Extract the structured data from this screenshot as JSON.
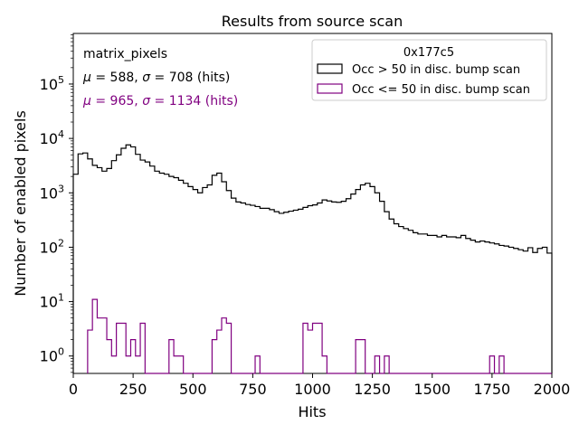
{
  "chart_data": {
    "type": "histogram-step",
    "title": "Results from source scan",
    "xlabel": "Hits",
    "ylabel": "Number of enabled pixels",
    "xlim": [
      0,
      2000
    ],
    "ylim_log10": [
      -0.32,
      5.93
    ],
    "yscale": "log",
    "x_ticks": [
      0,
      250,
      500,
      750,
      1000,
      1250,
      1500,
      1750,
      2000
    ],
    "y_ticks": [
      {
        "exp": 0,
        "label_base": "10",
        "label_exp": "0"
      },
      {
        "exp": 1,
        "label_base": "10",
        "label_exp": "1"
      },
      {
        "exp": 2,
        "label_base": "10",
        "label_exp": "2"
      },
      {
        "exp": 3,
        "label_base": "10",
        "label_exp": "3"
      },
      {
        "exp": 4,
        "label_base": "10",
        "label_exp": "4"
      },
      {
        "exp": 5,
        "label_base": "10",
        "label_exp": "5"
      }
    ],
    "bin_width": 20,
    "annotations": {
      "name": "matrix_pixels",
      "stats_all": {
        "mu_sym": "μ",
        "mu_val": " = 588, ",
        "sigma_sym": "σ",
        "sigma_val": " = 708 (hits)",
        "color": "#000000"
      },
      "stats_low": {
        "mu_sym": "μ",
        "mu_val": " = 965, ",
        "sigma_sym": "σ",
        "sigma_val": " = 1134 (hits)",
        "color": "#800080"
      }
    },
    "legend": {
      "title": "0x177c5",
      "placement": "top-right",
      "entries": [
        {
          "label": "Occ > 50 in disc. bump scan",
          "color": "#000000"
        },
        {
          "label": "Occ <= 50 in disc. bump scan",
          "color": "#800080"
        }
      ]
    },
    "series": [
      {
        "name": "Occ > 50 in disc. bump scan",
        "color": "#000000",
        "x_start": 0,
        "values": [
          2200,
          5200,
          5400,
          4200,
          3200,
          2900,
          2500,
          2800,
          3900,
          5000,
          6600,
          7600,
          7000,
          5100,
          4000,
          3700,
          3100,
          2500,
          2300,
          2200,
          2000,
          1900,
          1700,
          1500,
          1300,
          1150,
          1000,
          1250,
          1400,
          2100,
          2300,
          1600,
          1100,
          800,
          680,
          650,
          610,
          590,
          560,
          520,
          520,
          490,
          450,
          420,
          440,
          460,
          480,
          500,
          540,
          580,
          600,
          650,
          740,
          710,
          680,
          670,
          700,
          780,
          950,
          1150,
          1400,
          1500,
          1300,
          1000,
          700,
          450,
          330,
          270,
          240,
          220,
          205,
          185,
          175,
          175,
          165,
          165,
          155,
          165,
          155,
          155,
          150,
          165,
          145,
          135,
          125,
          130,
          125,
          120,
          115,
          108,
          105,
          100,
          95,
          90,
          85,
          98,
          80,
          95,
          100,
          78
        ]
      },
      {
        "name": "Occ <= 50 in disc. bump scan",
        "color": "#800080",
        "x_start": 60,
        "values": [
          3,
          11,
          5,
          5,
          2,
          1,
          4,
          4,
          1,
          2,
          1,
          4,
          0.3,
          0.3,
          0.3,
          0.3,
          0.3,
          2,
          1,
          1,
          0.3,
          0.3,
          0.3,
          0.3,
          0.3,
          0.3,
          2,
          3,
          5,
          4,
          0.3,
          0.3,
          0.3,
          0.3,
          0.3,
          1,
          0.3,
          0.3,
          0.3,
          0.3,
          0.3,
          0.3,
          0.3,
          0.3,
          0.3,
          4,
          3,
          4,
          4,
          1,
          0.3,
          0.3,
          0.3,
          0.3,
          0.3,
          0.3,
          2,
          2,
          0.3,
          0.3,
          1,
          0.3,
          1,
          0.3,
          0.3,
          0.3,
          0.3,
          0.3,
          0.3,
          0.3,
          0.3,
          0.3,
          0.3,
          0.3,
          0.3,
          0.3,
          0.3,
          0.3,
          0.3,
          0.3,
          0.3,
          0.3,
          0.3,
          0.3,
          1,
          0.3,
          1,
          0.3,
          0.3,
          0.3,
          0.3,
          0.3,
          0.3,
          0.3,
          0.3,
          0.3,
          0.3
        ]
      }
    ]
  }
}
